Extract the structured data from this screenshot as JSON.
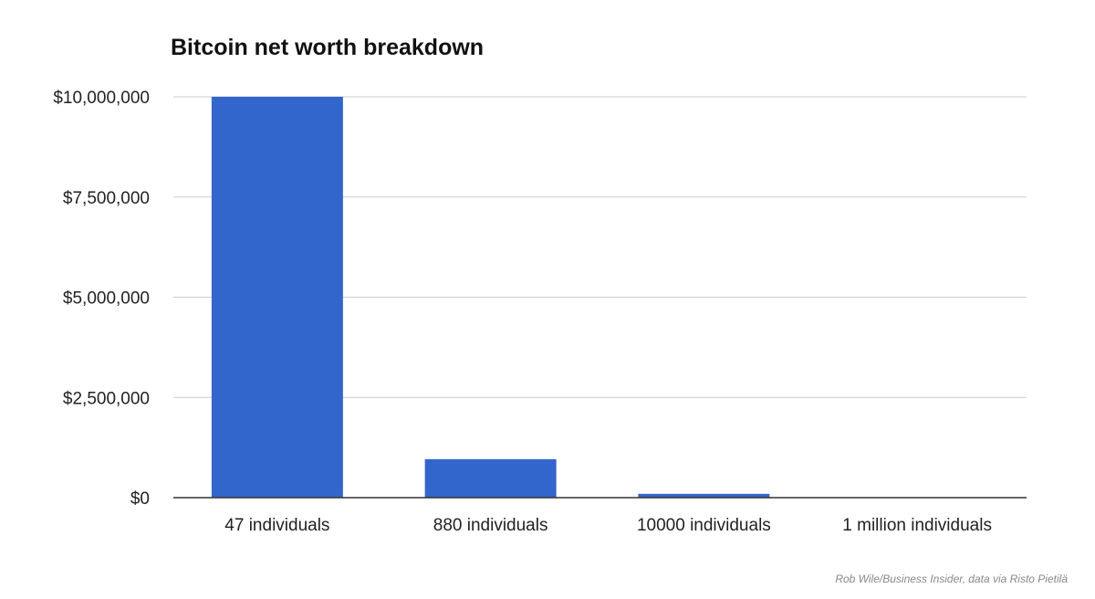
{
  "chart_data": {
    "type": "bar",
    "title": "Bitcoin net worth breakdown",
    "categories": [
      "47 individuals",
      "880 individuals",
      "10000 individuals",
      "1 million individuals"
    ],
    "values": [
      10000000,
      960000,
      95000,
      0
    ],
    "y_tick_values": [
      0,
      2500000,
      5000000,
      7500000,
      10000000
    ],
    "y_tick_labels": [
      "$0",
      "$2,500,000",
      "$5,000,000",
      "$7,500,000",
      "$10,000,000"
    ],
    "ylim": [
      0,
      10000000
    ],
    "xlabel": "",
    "ylabel": "",
    "grid": true,
    "legend": "none",
    "bar_color": "#3366cc",
    "grid_color": "#cccccc",
    "axis_color": "#333333",
    "text_color": "#222222"
  },
  "credit": "Rob Wile/Business Insider, data via Risto Pietilä"
}
